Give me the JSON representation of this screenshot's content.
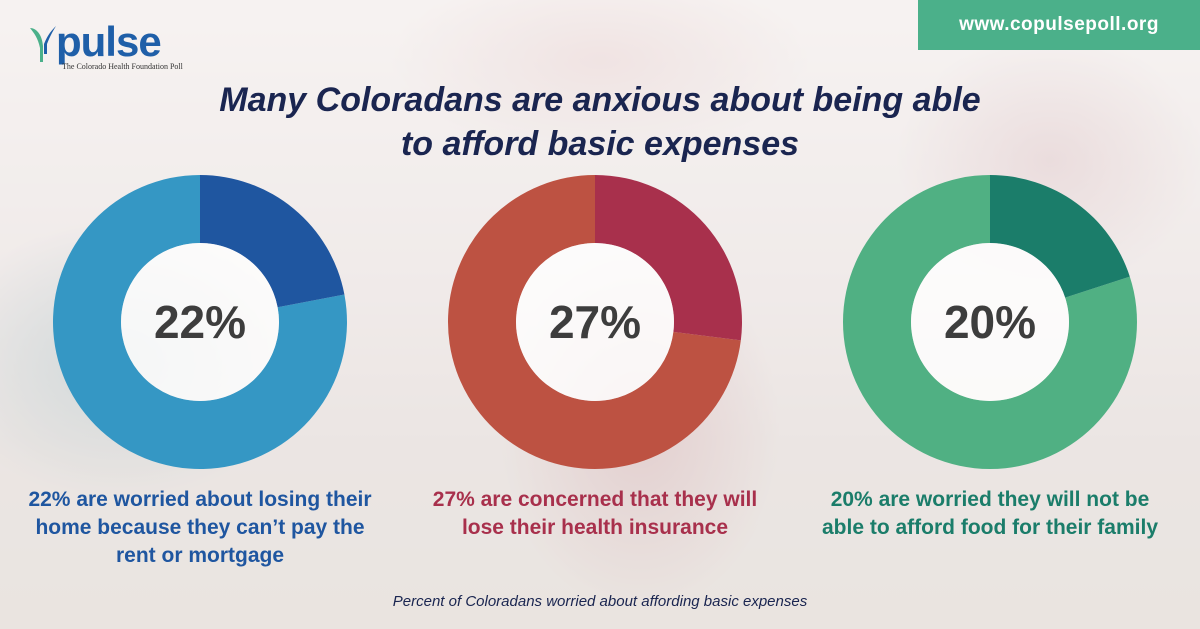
{
  "brand": {
    "logo_word": "pulse",
    "logo_subtitle": "The Colorado Health Foundation Poll",
    "url": "www.copulsepoll.org",
    "url_badge_color": "#4bb08a",
    "logo_color": "#1f5fa8"
  },
  "chart_data": {
    "type": "donut",
    "title": "Many Coloradans are anxious about being able to afford basic expenses",
    "footer": "Percent of Coloradans worried about affording basic expenses",
    "series": [
      {
        "value": 22,
        "label": "22%",
        "caption": "22% are worried about losing their home because they can’t pay the rent or mortgage",
        "highlight_color": "#1f56a0",
        "base_color": "#3597c4",
        "caption_color": "#1f56a0"
      },
      {
        "value": 27,
        "label": "27%",
        "caption": "27% are concerned that they will lose their health insurance",
        "highlight_color": "#a8304c",
        "base_color": "#bd5242",
        "caption_color": "#a8304c"
      },
      {
        "value": 20,
        "label": "20%",
        "caption": "20% are worried they will not be able to afford food for their family",
        "highlight_color": "#1b7d6a",
        "base_color": "#50b083",
        "caption_color": "#1b7d6a"
      }
    ]
  }
}
